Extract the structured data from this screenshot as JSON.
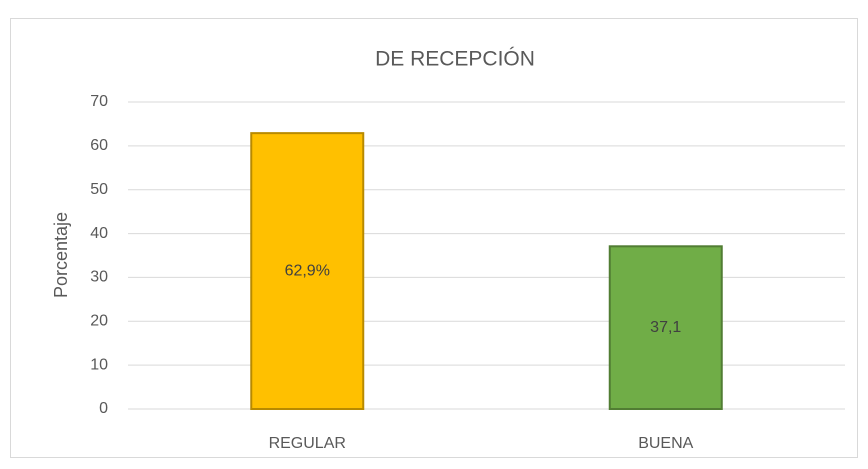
{
  "chart_data": {
    "type": "bar",
    "title": "DE RECEPCIÓN",
    "y_label": "Porcentaje",
    "categories": [
      "REGULAR",
      "BUENA"
    ],
    "values": [
      62.9,
      37.1
    ],
    "value_labels": [
      "62,9%",
      "37,1"
    ],
    "colors": [
      "#ffc000",
      "#70ad47"
    ],
    "ylim": [
      0,
      70
    ],
    "yticks": [
      0,
      10,
      20,
      30,
      40,
      50,
      60,
      70
    ],
    "grid": true
  }
}
